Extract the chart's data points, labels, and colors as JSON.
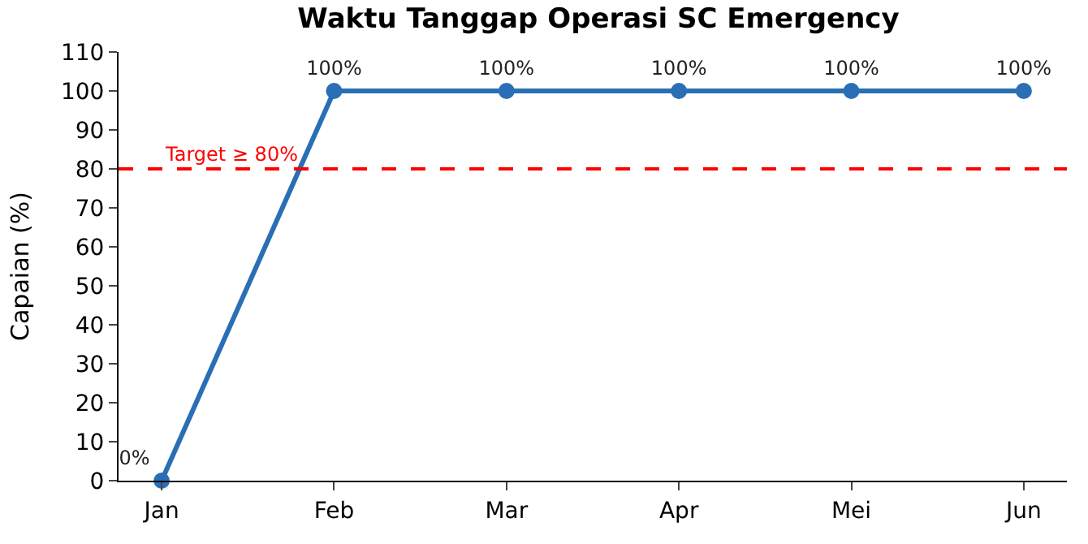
{
  "chart_data": {
    "type": "line",
    "title": "Waktu Tanggap Operasi SC Emergency",
    "ylabel": "Capaian (%)",
    "categories": [
      "Jan",
      "Feb",
      "Mar",
      "Apr",
      "Mei",
      "Jun"
    ],
    "series": [
      {
        "color": "#2a6fb5",
        "values": [
          0,
          100,
          100,
          100,
          100,
          100
        ],
        "value_labels": [
          "0%",
          "100%",
          "100%",
          "100%",
          "100%",
          "100%"
        ]
      }
    ],
    "ylim": [
      0,
      110
    ],
    "yticks": [
      0,
      10,
      20,
      30,
      40,
      50,
      60,
      70,
      80,
      90,
      100,
      110
    ],
    "ref_lines": [
      {
        "axis": "y",
        "value": 80,
        "label": "Target ≥ 80%",
        "color": "#ff0000",
        "line_style": "dashed"
      }
    ],
    "marker": "circle",
    "line_style": "solid",
    "grid": false
  }
}
